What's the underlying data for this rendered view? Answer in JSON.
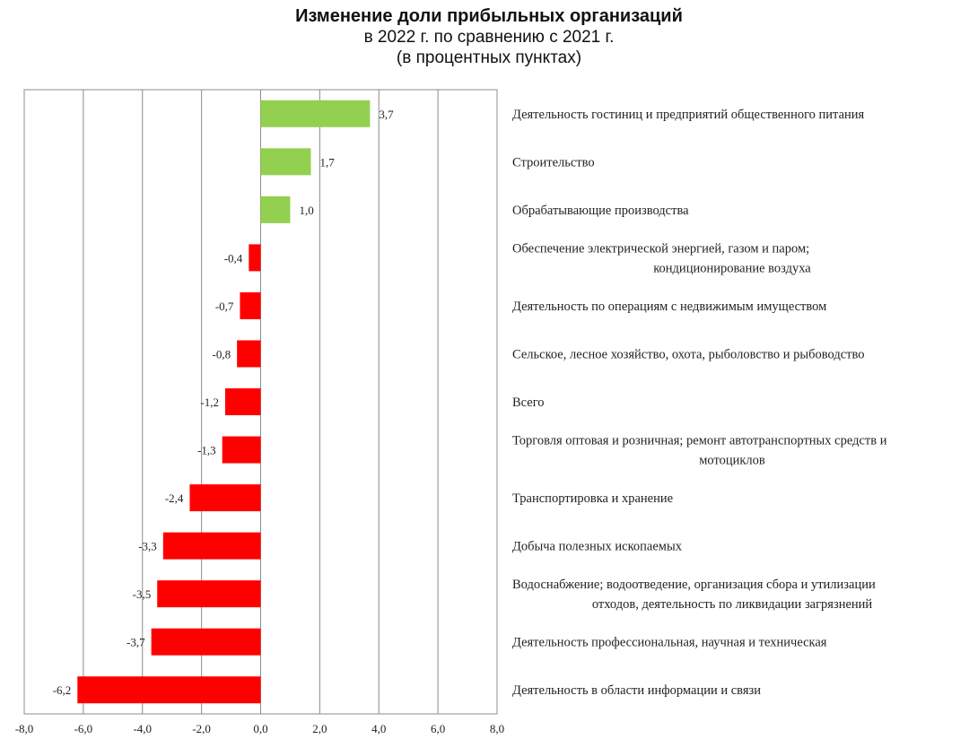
{
  "chart_data": {
    "type": "bar",
    "orientation": "horizontal",
    "title": "Изменение доли прибыльных организаций",
    "subtitle": "в 2022 г. по сравнению с 2021 г.",
    "units": "(в процентных пунктах)",
    "xlim": [
      -8,
      8
    ],
    "xticks": [
      "-8,0",
      "-6,0",
      "-4,0",
      "-2,0",
      "0,0",
      "2,0",
      "4,0",
      "6,0",
      "8,0"
    ],
    "grid": true,
    "positive_color": "#92d050",
    "negative_color": "#ff0000",
    "categories": [
      [
        "Деятельность гостиниц и предприятий общественного питания"
      ],
      [
        "Строительство"
      ],
      [
        "Обрабатывающие производства"
      ],
      [
        "Обеспечение электрической энергией, газом и паром;",
        "кондиционирование воздуха"
      ],
      [
        "Деятельность по операциям с недвижимым имуществом"
      ],
      [
        "Сельское, лесное хозяйство, охота, рыболовство и рыбоводство"
      ],
      [
        "Всего"
      ],
      [
        "Торговля оптовая и розничная; ремонт автотранспортных средств и",
        "мотоциклов"
      ],
      [
        "Транспортировка и хранение"
      ],
      [
        "Добыча полезных ископаемых"
      ],
      [
        "Водоснабжение; водоотведение, организация сбора и утилизации",
        "отходов, деятельность по ликвидации загрязнений"
      ],
      [
        "Деятельность профессиональная, научная и техническая"
      ],
      [
        "Деятельность в области информации и связи"
      ]
    ],
    "values": [
      3.7,
      1.7,
      1.0,
      -0.4,
      -0.7,
      -0.8,
      -1.2,
      -1.3,
      -2.4,
      -3.3,
      -3.5,
      -3.7,
      -6.2
    ],
    "value_labels": [
      "3,7",
      "1,7",
      "1,0",
      "-0,4",
      "-0,7",
      "-0,8",
      "-1,2",
      "-1,3",
      "-2,4",
      "-3,3",
      "-3,5",
      "-3,7",
      "-6,2"
    ]
  }
}
